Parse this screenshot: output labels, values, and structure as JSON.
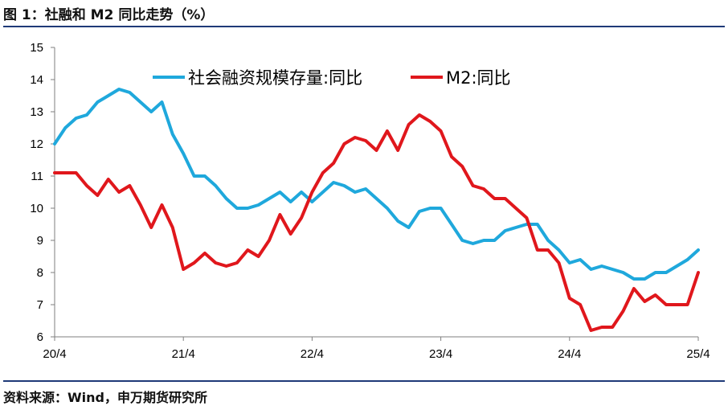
{
  "header": {
    "title": "图 1：社融和 M2 同比走势（%）"
  },
  "footer": {
    "source": "资料来源：Wind，申万期货研究所"
  },
  "chart_data": {
    "type": "line",
    "title": "图 1：社融和 M2 同比走势（%）",
    "xlabel": "",
    "ylabel": "",
    "ylim": [
      6,
      15
    ],
    "yticks": [
      6,
      7,
      8,
      9,
      10,
      11,
      12,
      13,
      14,
      15
    ],
    "xticks": [
      "20/4",
      "21/4",
      "22/4",
      "23/4",
      "24/4",
      "25/4"
    ],
    "x": [
      "2020-04",
      "2020-05",
      "2020-06",
      "2020-07",
      "2020-08",
      "2020-09",
      "2020-10",
      "2020-11",
      "2020-12",
      "2021-01",
      "2021-02",
      "2021-03",
      "2021-04",
      "2021-05",
      "2021-06",
      "2021-07",
      "2021-08",
      "2021-09",
      "2021-10",
      "2021-11",
      "2021-12",
      "2022-01",
      "2022-02",
      "2022-03",
      "2022-04",
      "2022-05",
      "2022-06",
      "2022-07",
      "2022-08",
      "2022-09",
      "2022-10",
      "2022-11",
      "2022-12",
      "2023-01",
      "2023-02",
      "2023-03",
      "2023-04",
      "2023-05",
      "2023-06",
      "2023-07",
      "2023-08",
      "2023-09",
      "2023-10",
      "2023-11",
      "2023-12",
      "2024-01",
      "2024-02",
      "2024-03",
      "2024-04",
      "2024-05",
      "2024-06",
      "2024-07",
      "2024-08",
      "2024-09",
      "2024-10",
      "2024-11",
      "2024-12",
      "2025-01",
      "2025-02",
      "2025-03",
      "2025-04"
    ],
    "legend_position": "top",
    "series": [
      {
        "name": "社会融资规模存量:同比",
        "color": "#1fa8dc",
        "values": [
          12.0,
          12.5,
          12.8,
          12.9,
          13.3,
          13.5,
          13.7,
          13.6,
          13.3,
          13.0,
          13.3,
          12.3,
          11.7,
          11.0,
          11.0,
          10.7,
          10.3,
          10.0,
          10.0,
          10.1,
          10.3,
          10.5,
          10.2,
          10.5,
          10.2,
          10.5,
          10.8,
          10.7,
          10.5,
          10.6,
          10.3,
          10.0,
          9.6,
          9.4,
          9.9,
          10.0,
          10.0,
          9.5,
          9.0,
          8.9,
          9.0,
          9.0,
          9.3,
          9.4,
          9.5,
          9.5,
          9.0,
          8.7,
          8.3,
          8.4,
          8.1,
          8.2,
          8.1,
          8.0,
          7.8,
          7.8,
          8.0,
          8.0,
          8.2,
          8.4,
          8.7
        ]
      },
      {
        "name": "M2:同比",
        "color": "#e0171c",
        "values": [
          11.1,
          11.1,
          11.1,
          10.7,
          10.4,
          10.9,
          10.5,
          10.7,
          10.1,
          9.4,
          10.1,
          9.4,
          8.1,
          8.3,
          8.6,
          8.3,
          8.2,
          8.3,
          8.7,
          8.5,
          9.0,
          9.8,
          9.2,
          9.7,
          10.5,
          11.1,
          11.4,
          12.0,
          12.2,
          12.1,
          11.8,
          12.4,
          11.8,
          12.6,
          12.9,
          12.7,
          12.4,
          11.6,
          11.3,
          10.7,
          10.6,
          10.3,
          10.3,
          10.0,
          9.7,
          8.7,
          8.7,
          8.3,
          7.2,
          7.0,
          6.2,
          6.3,
          6.3,
          6.8,
          7.5,
          7.1,
          7.3,
          7.0,
          7.0,
          7.0,
          8.0
        ]
      }
    ]
  }
}
